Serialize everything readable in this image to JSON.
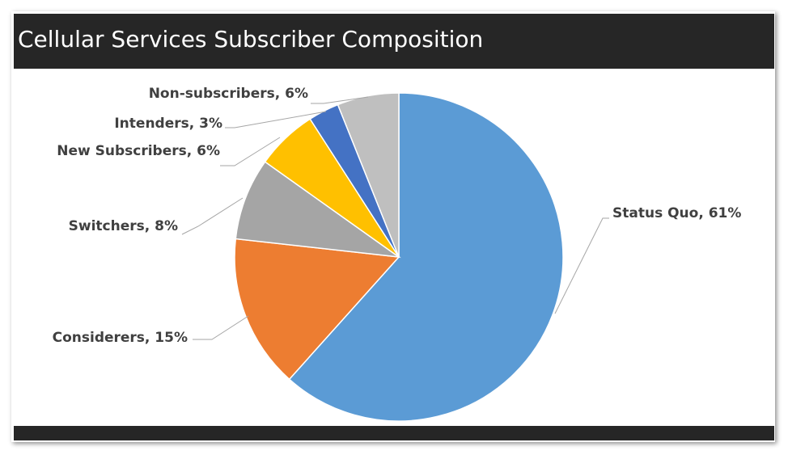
{
  "chart_data": {
    "type": "pie",
    "title": "Cellular Services Subscriber Composition",
    "values": [
      61,
      15,
      8,
      6,
      3,
      6
    ],
    "value_labels": [
      "Status Quo, 61%",
      "Considerers, 15%",
      "Switchers, 8%",
      "New Subscribers, 6%",
      "Intenders, 3%",
      "Non-subscribers, 6%"
    ],
    "colors": [
      "#5b9bd5",
      "#ed7d31",
      "#a5a5a5",
      "#ffc000",
      "#4472c4",
      "#bfbfbf"
    ]
  }
}
